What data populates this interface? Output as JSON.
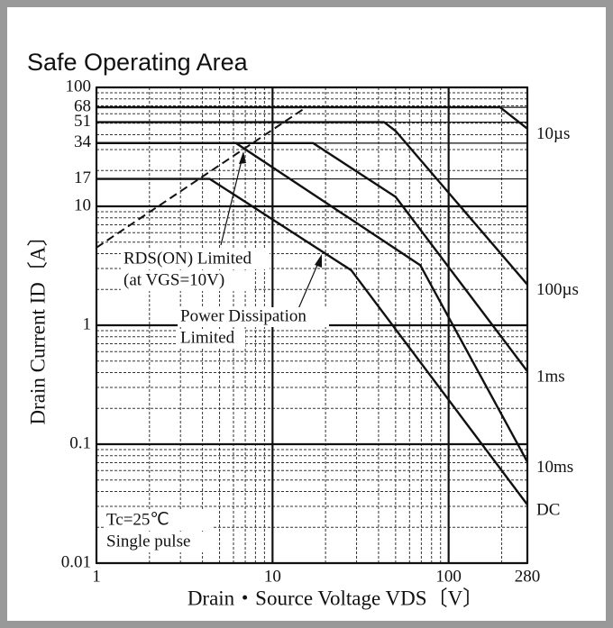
{
  "chart_data": {
    "type": "line",
    "title": "Safe Operating Area",
    "x_label": "Drain・Source Voltage VDS〔V〕",
    "y_label": "Drain Current ID〔A〕",
    "log_x": true,
    "log_y": true,
    "grid": true,
    "minor_grid": true,
    "color": "#111",
    "xlim": [
      1,
      280
    ],
    "ylim": [
      0.01,
      100
    ],
    "xticks": [
      1,
      10,
      100,
      280
    ],
    "yticks": [
      0.01,
      0.1,
      1,
      10,
      17,
      34,
      51,
      68,
      100
    ],
    "series": [
      {
        "name": "10µs",
        "x": [
          1,
          196,
          280
        ],
        "values": [
          68,
          68,
          45
        ]
      },
      {
        "name": "100µs",
        "x": [
          1,
          43,
          50,
          280
        ],
        "values": [
          51,
          51,
          43,
          2.2
        ]
      },
      {
        "name": "1ms",
        "x": [
          1,
          17,
          50,
          280
        ],
        "values": [
          34,
          34,
          12,
          0.41
        ]
      },
      {
        "name": "10ms",
        "x": [
          1,
          6.2,
          69,
          280
        ],
        "values": [
          34,
          34,
          3.2,
          0.071
        ]
      },
      {
        "name": "DC",
        "x": [
          1,
          4.4,
          28,
          280
        ],
        "values": [
          17,
          17,
          2.9,
          0.031
        ]
      }
    ],
    "limit_line": {
      "x": [
        1,
        15.5
      ],
      "values": [
        4.5,
        68
      ]
    },
    "annotations": [
      "RDS(ON) Limited",
      "(at VGS=10V)",
      "Power Dissipation",
      "Limited",
      "Tc=25℃",
      "Single pulse"
    ]
  }
}
